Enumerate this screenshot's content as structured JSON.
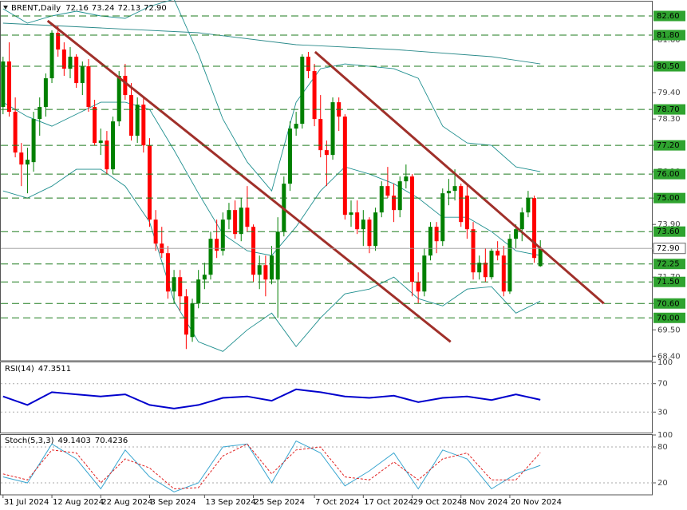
{
  "chart_data": [
    {
      "type": "candlestick",
      "title": "BRENT,Daily",
      "last_bar_labels": [
        "72.16",
        "73.24",
        "72.13",
        "72.90"
      ],
      "up_color": "#008000",
      "down_color": "#ff0000",
      "xlim": [
        -0.5,
        106.4
      ],
      "ylim": [
        68.21,
        83.2
      ],
      "xticks": [
        {
          "value": 0,
          "label": "31 Jul 2024"
        },
        {
          "value": 8,
          "label": "12 Aug 2024"
        },
        {
          "value": 16,
          "label": "22 Aug 2024"
        },
        {
          "value": 24,
          "label": "3 Sep 2024"
        },
        {
          "value": 33,
          "label": "13 Sep 2024"
        },
        {
          "value": 41,
          "label": "25 Sep 2024"
        },
        {
          "value": 51,
          "label": "7 Oct 2024"
        },
        {
          "value": 59,
          "label": "17 Oct 2024"
        },
        {
          "value": 67,
          "label": "29 Oct 2024"
        },
        {
          "value": 75,
          "label": "8 Nov 2024"
        },
        {
          "value": 83,
          "label": "20 Nov 2024"
        }
      ],
      "yticks": [
        {
          "value": 68.4,
          "label": "68.40"
        },
        {
          "value": 69.5,
          "label": "69.50"
        },
        {
          "value": 70.6,
          "label": "70.60"
        },
        {
          "value": 71.7,
          "label": "71.70"
        },
        {
          "value": 72.8,
          "label": "72.80"
        },
        {
          "value": 73.9,
          "label": "73.90"
        },
        {
          "value": 75.0,
          "label": "75.00"
        },
        {
          "value": 76.1,
          "label": "76.10"
        },
        {
          "value": 77.2,
          "label": "77.20"
        },
        {
          "value": 78.3,
          "label": "78.30"
        },
        {
          "value": 79.4,
          "label": "79.40"
        },
        {
          "value": 80.5,
          "label": "80.50"
        },
        {
          "value": 81.6,
          "label": "81.60"
        }
      ],
      "level_color": "#1e7b1e",
      "level_box_color": "#2fa32f",
      "levels": [
        {
          "value": 82.6,
          "label": "82.60"
        },
        {
          "value": 81.8,
          "label": "81.80"
        },
        {
          "value": 80.5,
          "label": "80.50"
        },
        {
          "value": 78.7,
          "label": "78.70"
        },
        {
          "value": 77.2,
          "label": "77.20"
        },
        {
          "value": 76.0,
          "label": "76.00"
        },
        {
          "value": 75.0,
          "label": "75.00"
        },
        {
          "value": 73.6,
          "label": "73.60"
        },
        {
          "value": 72.25,
          "label": "72.25"
        },
        {
          "value": 71.5,
          "label": "71.50"
        },
        {
          "value": 70.6,
          "label": "70.60"
        },
        {
          "value": 70.0,
          "label": "70.00"
        }
      ],
      "candles": [
        [
          78.8,
          80.9,
          78.5,
          80.7
        ],
        [
          80.7,
          81.5,
          78.4,
          78.6
        ],
        [
          78.6,
          79.2,
          76.7,
          76.9
        ],
        [
          76.9,
          77.3,
          75.5,
          76.4
        ],
        [
          76.4,
          77.1,
          75.2,
          76.6
        ],
        [
          76.5,
          78.6,
          76.1,
          78.3
        ],
        [
          78.3,
          79.2,
          77.6,
          78.8
        ],
        [
          78.8,
          80.2,
          78.4,
          80.0
        ],
        [
          80.0,
          82.0,
          79.8,
          81.9
        ],
        [
          81.9,
          82.2,
          80.9,
          81.2
        ],
        [
          81.2,
          81.5,
          80.1,
          80.4
        ],
        [
          80.4,
          81.3,
          80.0,
          80.9
        ],
        [
          80.9,
          81.0,
          79.6,
          79.8
        ],
        [
          79.8,
          80.7,
          79.3,
          80.5
        ],
        [
          80.5,
          80.8,
          78.6,
          78.8
        ],
        [
          78.8,
          79.1,
          77.2,
          77.3
        ],
        [
          77.3,
          77.9,
          76.8,
          77.4
        ],
        [
          77.4,
          77.8,
          76.0,
          76.2
        ],
        [
          76.2,
          78.4,
          76.0,
          78.2
        ],
        [
          78.2,
          80.3,
          78.0,
          80.1
        ],
        [
          80.1,
          80.6,
          79.1,
          79.3
        ],
        [
          79.3,
          79.8,
          77.4,
          77.6
        ],
        [
          77.6,
          79.2,
          77.3,
          78.9
        ],
        [
          78.9,
          79.2,
          76.9,
          77.2
        ],
        [
          77.2,
          77.5,
          73.8,
          74.1
        ],
        [
          74.1,
          74.5,
          72.8,
          73.1
        ],
        [
          73.1,
          73.8,
          72.5,
          72.7
        ],
        [
          72.7,
          73.0,
          70.8,
          71.1
        ],
        [
          71.1,
          72.0,
          70.6,
          71.7
        ],
        [
          71.7,
          72.0,
          70.3,
          70.9
        ],
        [
          70.9,
          71.2,
          68.7,
          69.3
        ],
        [
          69.2,
          70.8,
          69.0,
          70.6
        ],
        [
          70.6,
          72.0,
          70.4,
          71.6
        ],
        [
          71.6,
          72.3,
          71.2,
          71.8
        ],
        [
          71.8,
          73.6,
          71.6,
          73.3
        ],
        [
          73.3,
          74.1,
          72.5,
          72.8
        ],
        [
          72.8,
          74.4,
          72.6,
          74.1
        ],
        [
          74.1,
          74.8,
          73.7,
          74.5
        ],
        [
          74.5,
          74.9,
          73.3,
          73.5
        ],
        [
          73.5,
          75.0,
          73.2,
          74.6
        ],
        [
          74.6,
          75.5,
          73.6,
          73.8
        ],
        [
          73.8,
          73.9,
          71.5,
          71.8
        ],
        [
          71.8,
          72.6,
          71.2,
          72.2
        ],
        [
          72.2,
          72.6,
          70.9,
          71.6
        ],
        [
          71.6,
          73.0,
          71.4,
          72.6
        ],
        [
          71.6,
          74.2,
          70.0,
          73.6
        ],
        [
          73.6,
          75.9,
          73.4,
          75.6
        ],
        [
          75.6,
          78.2,
          75.3,
          77.9
        ],
        [
          77.9,
          78.6,
          77.6,
          78.1
        ],
        [
          78.1,
          81.0,
          77.9,
          80.9
        ],
        [
          80.9,
          81.1,
          80.0,
          80.3
        ],
        [
          80.3,
          80.6,
          78.0,
          78.3
        ],
        [
          78.3,
          79.3,
          76.7,
          77.0
        ],
        [
          77.0,
          77.4,
          75.5,
          76.8
        ],
        [
          76.8,
          79.2,
          76.6,
          79.0
        ],
        [
          79.0,
          79.2,
          77.8,
          78.4
        ],
        [
          78.4,
          78.5,
          74.1,
          74.3
        ],
        [
          74.3,
          74.9,
          73.8,
          74.4
        ],
        [
          74.4,
          74.9,
          73.5,
          73.7
        ],
        [
          73.7,
          74.5,
          73.0,
          74.1
        ],
        [
          74.1,
          74.2,
          72.7,
          73.0
        ],
        [
          73.0,
          74.6,
          72.8,
          74.4
        ],
        [
          74.4,
          75.7,
          74.2,
          75.5
        ],
        [
          75.5,
          76.3,
          75.0,
          75.1
        ],
        [
          75.1,
          75.6,
          74.0,
          74.5
        ],
        [
          74.5,
          75.9,
          74.2,
          75.7
        ],
        [
          75.7,
          76.4,
          75.4,
          75.9
        ],
        [
          75.9,
          76.0,
          70.9,
          71.5
        ],
        [
          71.5,
          71.9,
          70.6,
          71.1
        ],
        [
          71.1,
          72.9,
          70.9,
          72.6
        ],
        [
          72.6,
          74.0,
          72.4,
          73.8
        ],
        [
          73.8,
          74.0,
          72.7,
          73.2
        ],
        [
          73.2,
          75.4,
          73.0,
          75.2
        ],
        [
          75.2,
          75.8,
          74.7,
          75.3
        ],
        [
          75.3,
          76.2,
          74.9,
          75.5
        ],
        [
          75.5,
          75.6,
          73.8,
          74.0
        ],
        [
          75.1,
          75.6,
          73.3,
          73.7
        ],
        [
          73.7,
          74.0,
          71.6,
          71.9
        ],
        [
          71.9,
          72.6,
          71.6,
          72.3
        ],
        [
          72.3,
          72.9,
          71.5,
          71.7
        ],
        [
          71.7,
          72.9,
          71.6,
          72.8
        ],
        [
          72.8,
          73.2,
          72.4,
          72.6
        ],
        [
          72.6,
          73.0,
          70.9,
          71.1
        ],
        [
          71.1,
          73.5,
          71.0,
          73.3
        ],
        [
          73.3,
          73.9,
          72.9,
          73.7
        ],
        [
          73.7,
          74.6,
          73.2,
          74.4
        ],
        [
          74.4,
          75.3,
          74.2,
          75.0
        ],
        [
          75.0,
          75.1,
          72.3,
          72.5
        ],
        [
          72.16,
          73.24,
          72.13,
          72.9
        ]
      ],
      "lines": [
        {
          "color": "#1f8f8f",
          "x": [
            0,
            4,
            8,
            12,
            16,
            20,
            24,
            28,
            32,
            36,
            40,
            44,
            48,
            52,
            56,
            60,
            64,
            68,
            72,
            76,
            80,
            84,
            88
          ],
          "values": [
            82.9,
            82.3,
            82.6,
            82.8,
            82.6,
            82.5,
            83.0,
            83.3,
            81.0,
            78.3,
            76.5,
            75.3,
            79.0,
            80.4,
            80.6,
            80.5,
            80.4,
            80.0,
            78.0,
            77.3,
            77.2,
            76.3,
            76.1
          ]
        },
        {
          "color": "#1f8f8f",
          "x": [
            0,
            4,
            8,
            12,
            16,
            20,
            24,
            28,
            32,
            36,
            40,
            44,
            48,
            52,
            56,
            60,
            64,
            68,
            72,
            76,
            80,
            84,
            88
          ],
          "values": [
            79.0,
            78.4,
            78.0,
            78.5,
            79.0,
            79.0,
            78.7,
            77.0,
            75.2,
            73.5,
            72.8,
            72.6,
            73.8,
            75.3,
            76.3,
            76.0,
            75.6,
            75.0,
            74.2,
            74.2,
            73.6,
            72.8,
            72.6
          ]
        },
        {
          "color": "#1f8f8f",
          "x": [
            0,
            4,
            8,
            12,
            16,
            20,
            24,
            28,
            32,
            36,
            40,
            44,
            48,
            52,
            56,
            60,
            64,
            68,
            72,
            76,
            80,
            84,
            88
          ],
          "values": [
            75.3,
            75.0,
            75.5,
            76.2,
            76.2,
            75.5,
            74.0,
            70.7,
            69.0,
            68.6,
            69.5,
            70.2,
            68.8,
            70.0,
            71.0,
            71.2,
            71.7,
            70.8,
            70.5,
            71.2,
            71.3,
            70.2,
            70.7
          ]
        },
        {
          "color": "#2a8a8a",
          "x": [
            0,
            16,
            32,
            48,
            64,
            80,
            88
          ],
          "values": [
            82.3,
            82.1,
            81.9,
            81.4,
            81.2,
            80.9,
            80.6
          ]
        }
      ],
      "trendlines": [
        {
          "color": "#a0302a",
          "x": [
            7.3,
            73.3
          ],
          "values": [
            82.4,
            69.0
          ]
        },
        {
          "color": "#a0302a",
          "x": [
            51.1,
            98.4
          ],
          "values": [
            81.1,
            70.6
          ]
        }
      ]
    },
    {
      "type": "line",
      "title": "RSI(14)",
      "ylim": [
        0,
        100
      ],
      "yticks": [
        100,
        70,
        30
      ],
      "level_lines": [
        70,
        30
      ],
      "series": [
        {
          "color": "#0000cd",
          "x": [
            0,
            4,
            8,
            12,
            16,
            20,
            24,
            28,
            32,
            36,
            40,
            44,
            48,
            52,
            56,
            60,
            64,
            68,
            72,
            76,
            80,
            84,
            88
          ],
          "values": [
            52,
            40,
            58,
            55,
            52,
            55,
            40,
            35,
            40,
            50,
            52,
            46,
            62,
            58,
            52,
            50,
            53,
            44,
            50,
            52,
            47,
            55,
            47.3511
          ]
        }
      ]
    },
    {
      "type": "line",
      "title": "Stoch(5,3,3)",
      "ylim": [
        0,
        100
      ],
      "yticks": [
        100,
        80,
        20
      ],
      "level_lines": [
        80,
        20
      ],
      "series": [
        {
          "color": "#3aa6d0",
          "x": [
            0,
            4,
            8,
            12,
            16,
            20,
            24,
            28,
            32,
            36,
            40,
            44,
            48,
            52,
            56,
            60,
            64,
            68,
            72,
            76,
            80,
            84,
            88
          ],
          "values": [
            30,
            20,
            85,
            60,
            10,
            75,
            30,
            5,
            20,
            80,
            85,
            20,
            90,
            70,
            15,
            40,
            70,
            10,
            75,
            60,
            10,
            35,
            49.1403
          ]
        },
        {
          "color": "#e02020",
          "dash": true,
          "x": [
            0,
            4,
            8,
            12,
            16,
            20,
            24,
            28,
            32,
            36,
            40,
            44,
            48,
            52,
            56,
            60,
            64,
            68,
            72,
            76,
            80,
            84,
            88
          ],
          "values": [
            35,
            25,
            75,
            70,
            20,
            60,
            45,
            10,
            12,
            65,
            85,
            35,
            75,
            80,
            30,
            25,
            55,
            25,
            60,
            70,
            25,
            25,
            70.4236
          ]
        }
      ]
    }
  ]
}
